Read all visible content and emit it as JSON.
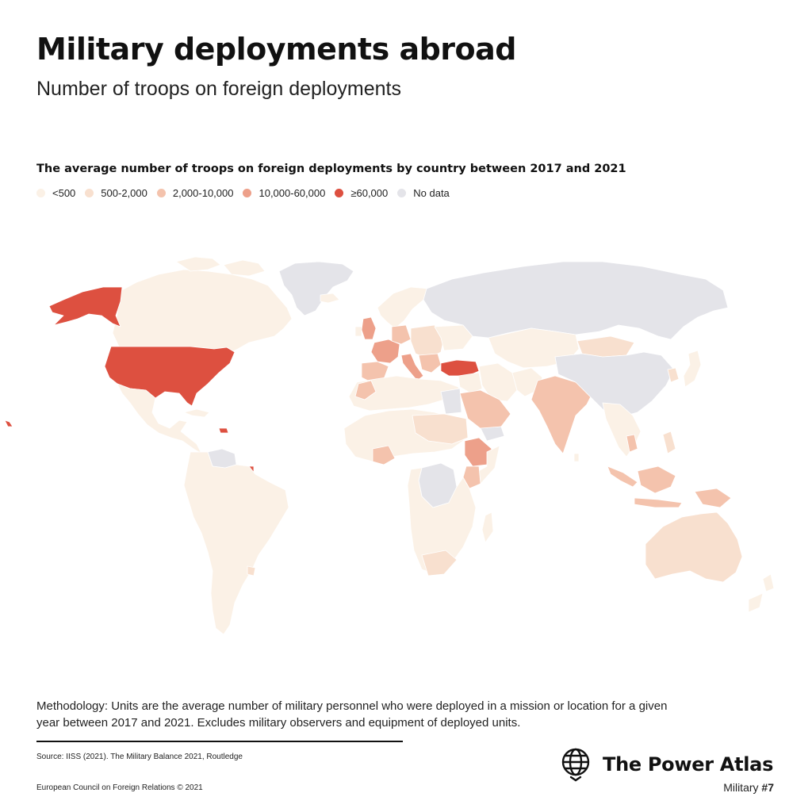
{
  "header": {
    "title": "Military deployments abroad",
    "subtitle": "Number of troops on foreign deployments"
  },
  "legend": {
    "title": "The average number of troops on foreign deployments by country between 2017 and 2021",
    "items": [
      {
        "label": "<500",
        "color": "#fbf1e6"
      },
      {
        "label": "500-2,000",
        "color": "#f8e0cf"
      },
      {
        "label": "2,000-10,000",
        "color": "#f4c3ad"
      },
      {
        "label": "10,000-60,000",
        "color": "#eda08a"
      },
      {
        "label": "≥60,000",
        "color": "#dd5040"
      },
      {
        "label": "No data",
        "color": "#e4e4e9"
      }
    ]
  },
  "footer": {
    "methodology": "Methodology: Units are the average number of military personnel who were deployed in a mission or location for a given year between 2017 and 2021. Excludes military observers and equipment of deployed units.",
    "source": "Source: IISS (2021). The Military Balance 2021, Routledge",
    "copyright": "European Council on Foreign Relations © 2021",
    "brand": "The Power Atlas",
    "series_prefix": "Military ",
    "series_number": "#7"
  }
}
